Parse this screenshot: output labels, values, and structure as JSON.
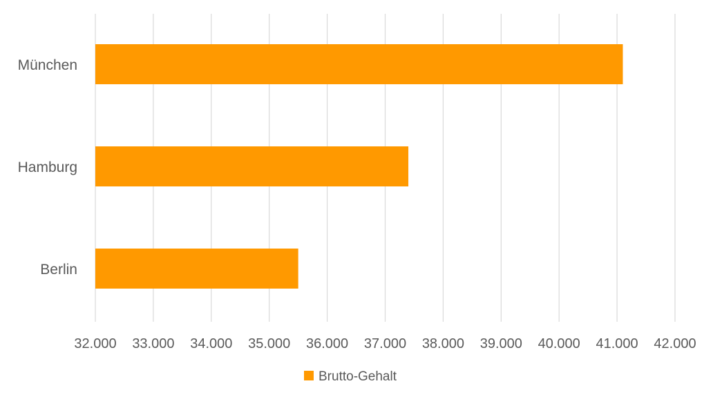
{
  "chart_data": {
    "type": "bar",
    "orientation": "horizontal",
    "categories": [
      "München",
      "Hamburg",
      "Berlin"
    ],
    "series": [
      {
        "name": "Brutto-Gehalt",
        "values": [
          41100,
          37400,
          35500
        ],
        "color": "#FF9900"
      }
    ],
    "xlim": [
      32000,
      42000
    ],
    "x_ticks": [
      32000,
      33000,
      34000,
      35000,
      36000,
      37000,
      38000,
      39000,
      40000,
      41000,
      42000
    ],
    "x_tick_labels": [
      "32.000",
      "33.000",
      "34.000",
      "35.000",
      "36.000",
      "37.000",
      "38.000",
      "39.000",
      "40.000",
      "41.000",
      "42.000"
    ],
    "title": "",
    "xlabel": "",
    "ylabel": "",
    "grid": "vertical",
    "legend_position": "bottom",
    "gridline_color": "#D9D9D9",
    "text_color": "#595959"
  }
}
